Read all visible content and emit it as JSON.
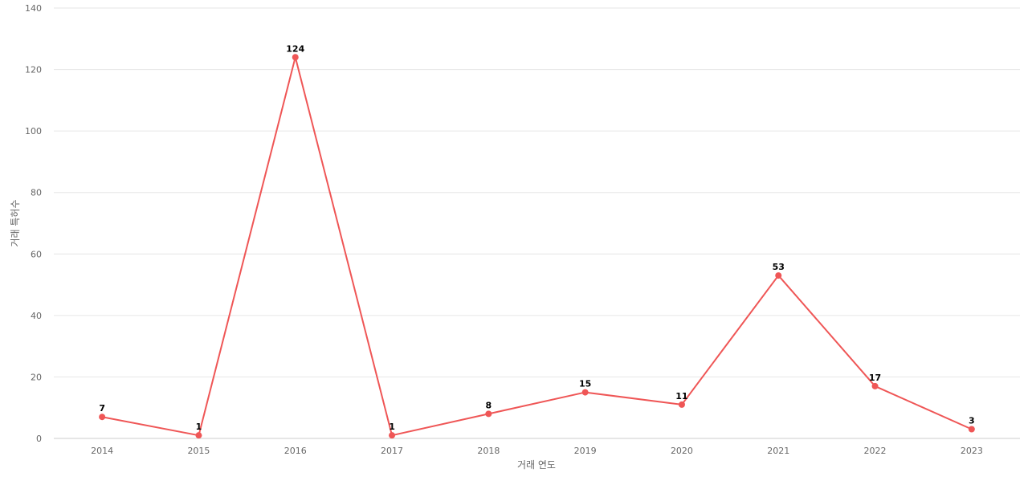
{
  "chart_data": {
    "type": "line",
    "title": "",
    "xlabel": "거래 연도",
    "ylabel": "거래 특허수",
    "categories": [
      "2014",
      "2015",
      "2016",
      "2017",
      "2018",
      "2019",
      "2020",
      "2021",
      "2022",
      "2023"
    ],
    "series": [
      {
        "values": [
          7,
          1,
          124,
          1,
          8,
          15,
          11,
          53,
          17,
          3
        ]
      }
    ],
    "ylim": [
      0,
      140
    ],
    "yticks": [
      0,
      20,
      40,
      60,
      80,
      100,
      120,
      140
    ],
    "grid": true,
    "legend": "none",
    "data_labels": true,
    "colors": {
      "line": "#ef5656",
      "marker": "#ef5656",
      "grid": "#e6e6e6"
    }
  }
}
